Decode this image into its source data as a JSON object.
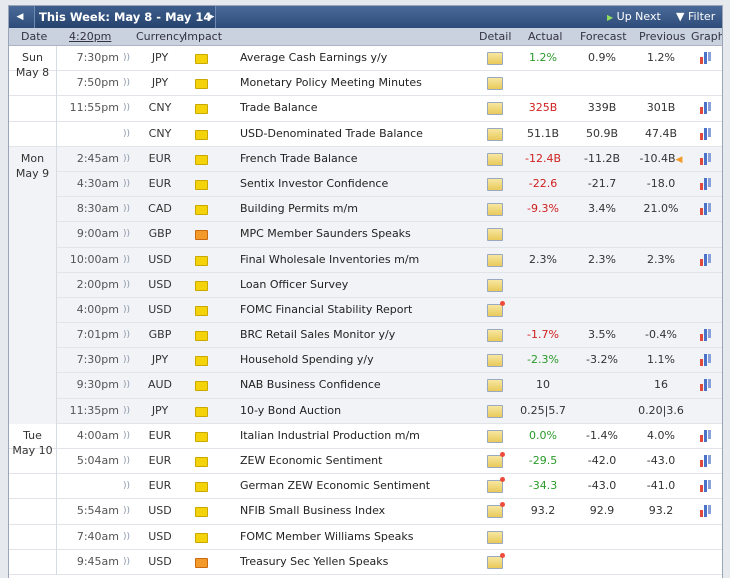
{
  "toolbar": {
    "week_label": "This Week: May 8 - May 14",
    "up_next": "Up Next",
    "filter": "Filter"
  },
  "columns": {
    "date": "Date",
    "time": "4:20pm",
    "currency": "Currency",
    "impact": "Impact",
    "detail": "Detail",
    "actual": "Actual",
    "forecast": "Forecast",
    "previous": "Previous",
    "graph": "Graph"
  },
  "days": [
    {
      "day": "Sun",
      "date": "May 8"
    },
    {
      "day": "Mon",
      "date": "May 9"
    },
    {
      "day": "Tue",
      "date": "May 10"
    }
  ],
  "events": [
    {
      "time": "7:30pm",
      "cur": "JPY",
      "impact": "low",
      "event": "Average Cash Earnings y/y",
      "detail": "plain",
      "actual": "1.2%",
      "actual_tone": "pos",
      "forecast": "0.9%",
      "previous": "1.2%",
      "graph": true
    },
    {
      "time": "7:50pm",
      "cur": "JPY",
      "impact": "low",
      "event": "Monetary Policy Meeting Minutes",
      "detail": "plain",
      "actual": "",
      "actual_tone": "neu",
      "forecast": "",
      "previous": "",
      "graph": false
    },
    {
      "time": "11:55pm",
      "cur": "CNY",
      "impact": "low",
      "event": "Trade Balance",
      "detail": "plain",
      "actual": "325B",
      "actual_tone": "neg",
      "forecast": "339B",
      "previous": "301B",
      "graph": true
    },
    {
      "time": "",
      "cur": "CNY",
      "impact": "low",
      "event": "USD-Denominated Trade Balance",
      "detail": "plain",
      "actual": "51.1B",
      "actual_tone": "neu",
      "forecast": "50.9B",
      "previous": "47.4B",
      "graph": true
    },
    {
      "time": "2:45am",
      "cur": "EUR",
      "impact": "low",
      "event": "French Trade Balance",
      "detail": "plain",
      "actual": "-12.4B",
      "actual_tone": "neg",
      "forecast": "-11.2B",
      "previous": "-10.4B",
      "graph": true,
      "revised": true
    },
    {
      "time": "4:30am",
      "cur": "EUR",
      "impact": "low",
      "event": "Sentix Investor Confidence",
      "detail": "plain",
      "actual": "-22.6",
      "actual_tone": "neg",
      "forecast": "-21.7",
      "previous": "-18.0",
      "graph": true
    },
    {
      "time": "8:30am",
      "cur": "CAD",
      "impact": "low",
      "event": "Building Permits m/m",
      "detail": "plain",
      "actual": "-9.3%",
      "actual_tone": "neg",
      "forecast": "3.4%",
      "previous": "21.0%",
      "graph": true
    },
    {
      "time": "9:00am",
      "cur": "GBP",
      "impact": "high",
      "event": "MPC Member Saunders Speaks",
      "detail": "plain",
      "actual": "",
      "actual_tone": "neu",
      "forecast": "",
      "previous": "",
      "graph": false
    },
    {
      "time": "10:00am",
      "cur": "USD",
      "impact": "low",
      "event": "Final Wholesale Inventories m/m",
      "detail": "plain",
      "actual": "2.3%",
      "actual_tone": "neu",
      "forecast": "2.3%",
      "previous": "2.3%",
      "graph": true
    },
    {
      "time": "2:00pm",
      "cur": "USD",
      "impact": "low",
      "event": "Loan Officer Survey",
      "detail": "plain",
      "actual": "",
      "actual_tone": "neu",
      "forecast": "",
      "previous": "",
      "graph": false
    },
    {
      "time": "4:00pm",
      "cur": "USD",
      "impact": "low",
      "event": "FOMC Financial Stability Report",
      "detail": "star",
      "actual": "",
      "actual_tone": "neu",
      "forecast": "",
      "previous": "",
      "graph": false
    },
    {
      "time": "7:01pm",
      "cur": "GBP",
      "impact": "low",
      "event": "BRC Retail Sales Monitor y/y",
      "detail": "plain",
      "actual": "-1.7%",
      "actual_tone": "neg",
      "forecast": "3.5%",
      "previous": "-0.4%",
      "graph": true
    },
    {
      "time": "7:30pm",
      "cur": "JPY",
      "impact": "low",
      "event": "Household Spending y/y",
      "detail": "plain",
      "actual": "-2.3%",
      "actual_tone": "pos",
      "forecast": "-3.2%",
      "previous": "1.1%",
      "graph": true
    },
    {
      "time": "9:30pm",
      "cur": "AUD",
      "impact": "low",
      "event": "NAB Business Confidence",
      "detail": "plain",
      "actual": "10",
      "actual_tone": "neu",
      "forecast": "",
      "previous": "16",
      "graph": true
    },
    {
      "time": "11:35pm",
      "cur": "JPY",
      "impact": "low",
      "event": "10-y Bond Auction",
      "detail": "plain",
      "actual": "0.25|5.7",
      "actual_tone": "neu",
      "forecast": "",
      "previous": "0.20|3.6",
      "graph": false
    },
    {
      "time": "4:00am",
      "cur": "EUR",
      "impact": "low",
      "event": "Italian Industrial Production m/m",
      "detail": "plain",
      "actual": "0.0%",
      "actual_tone": "pos",
      "forecast": "-1.4%",
      "previous": "4.0%",
      "graph": true
    },
    {
      "time": "5:04am",
      "cur": "EUR",
      "impact": "low",
      "event": "ZEW Economic Sentiment",
      "detail": "star",
      "actual": "-29.5",
      "actual_tone": "pos",
      "forecast": "-42.0",
      "previous": "-43.0",
      "graph": true
    },
    {
      "time": "",
      "cur": "EUR",
      "impact": "low",
      "event": "German ZEW Economic Sentiment",
      "detail": "star",
      "actual": "-34.3",
      "actual_tone": "pos",
      "forecast": "-43.0",
      "previous": "-41.0",
      "graph": true
    },
    {
      "time": "5:54am",
      "cur": "USD",
      "impact": "low",
      "event": "NFIB Small Business Index",
      "detail": "star",
      "actual": "93.2",
      "actual_tone": "neu",
      "forecast": "92.9",
      "previous": "93.2",
      "graph": true
    },
    {
      "time": "7:40am",
      "cur": "USD",
      "impact": "low",
      "event": "FOMC Member Williams Speaks",
      "detail": "plain",
      "actual": "",
      "actual_tone": "neu",
      "forecast": "",
      "previous": "",
      "graph": false
    },
    {
      "time": "9:45am",
      "cur": "USD",
      "impact": "high",
      "event": "Treasury Sec Yellen Speaks",
      "detail": "star",
      "actual": "",
      "actual_tone": "neu",
      "forecast": "",
      "previous": "",
      "graph": false
    }
  ],
  "day_spans": [
    4,
    11,
    6
  ]
}
